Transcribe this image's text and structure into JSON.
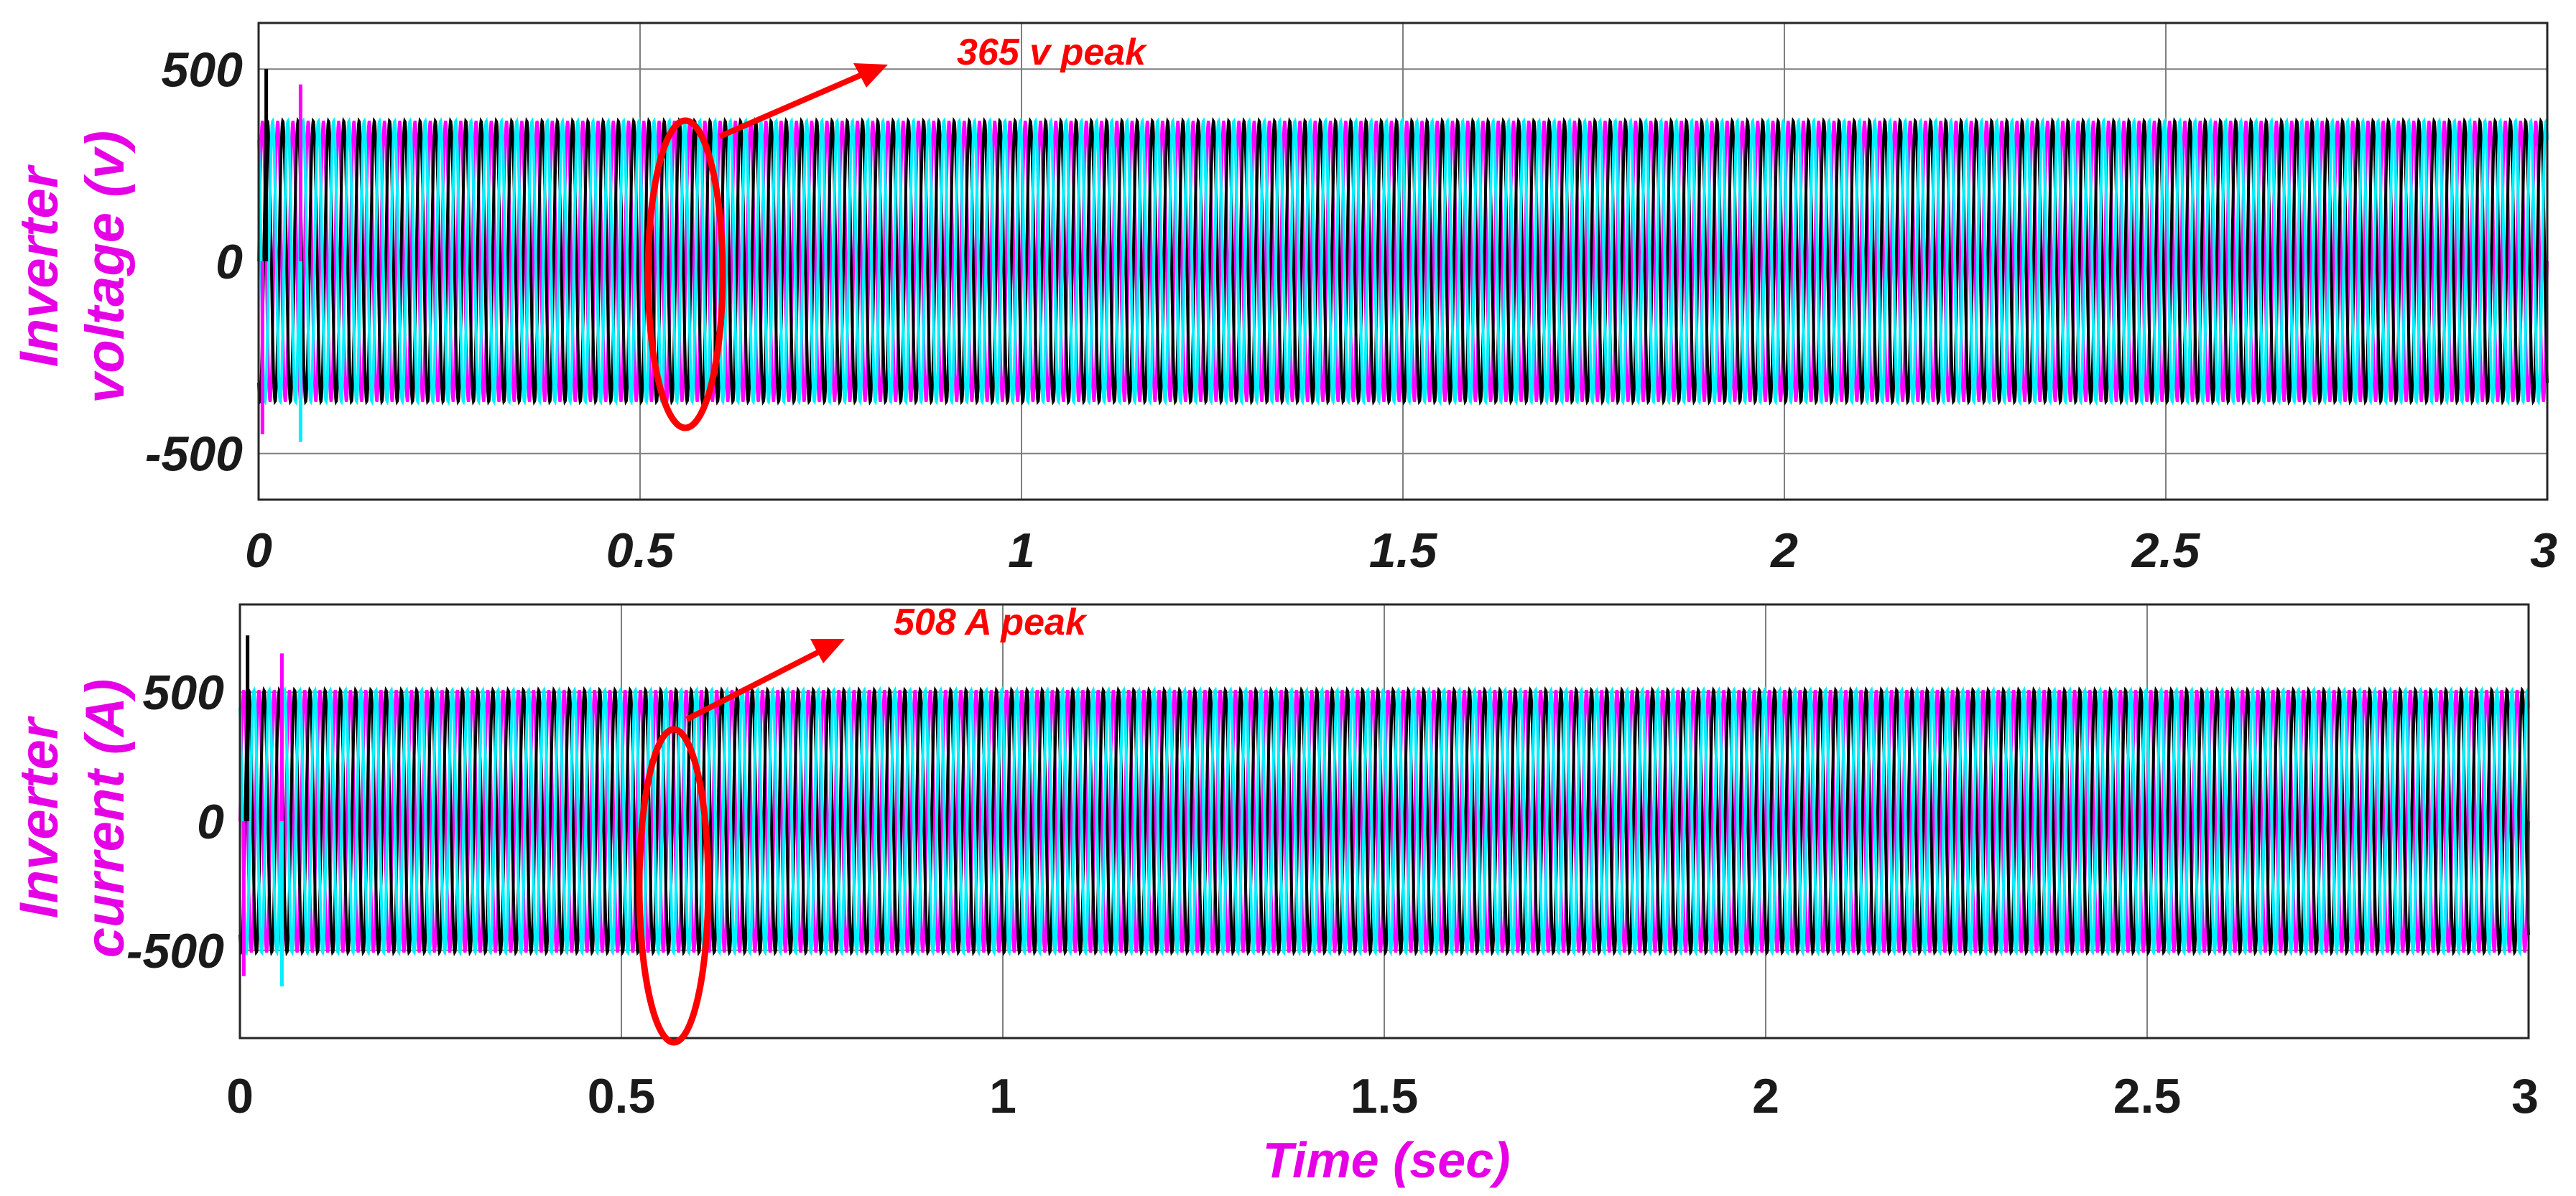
{
  "colors": {
    "phase_a": "#ff00ff",
    "phase_b": "#000000",
    "phase_c": "#00f0ff",
    "annotation": "#ff0000",
    "label": "#e600e6",
    "grid": "#7f7f7f"
  },
  "chart_data": [
    {
      "type": "line",
      "ylabel_lines": [
        "Inverter",
        "voltage (v)"
      ],
      "xlabel": "",
      "xlim": [
        0,
        3
      ],
      "ylim": [
        -620,
        620
      ],
      "x_ticks": [
        0,
        0.5,
        1,
        1.5,
        2,
        2.5,
        3
      ],
      "x_tick_labels": [
        "0",
        "0.5",
        "1",
        "1.5",
        "2",
        "2.5",
        "3"
      ],
      "y_ticks": [
        -500,
        0,
        500
      ],
      "y_tick_labels": [
        "-500",
        "0",
        "500"
      ],
      "grid": true,
      "frequency_hz": 50,
      "steady_amplitude": 365,
      "series": [
        {
          "phase_deg": 0,
          "color_key": "phase_a"
        },
        {
          "phase_deg": -120,
          "color_key": "phase_b"
        },
        {
          "phase_deg": 120,
          "color_key": "phase_c"
        }
      ],
      "transient_spikes": [
        {
          "x": 0.01,
          "y": 500,
          "color_key": "phase_b"
        },
        {
          "x": 0.005,
          "y": -450,
          "color_key": "phase_a"
        },
        {
          "x": 0.055,
          "y": 460,
          "color_key": "phase_a"
        },
        {
          "x": 0.055,
          "y": -470,
          "color_key": "phase_c"
        }
      ],
      "annotation": {
        "text": "365 v peak",
        "x": 0.56
      }
    },
    {
      "type": "line",
      "ylabel_lines": [
        "Inverter",
        "current (A)"
      ],
      "xlabel": "Time (sec)",
      "xlim": [
        0,
        3
      ],
      "ylim": [
        -840,
        840
      ],
      "x_ticks": [
        0,
        0.5,
        1,
        1.5,
        2,
        2.5,
        3
      ],
      "x_tick_labels": [
        "0",
        "0.5",
        "1",
        "1.5",
        "2",
        "2.5",
        "3"
      ],
      "y_ticks": [
        -500,
        0,
        500
      ],
      "y_tick_labels": [
        "-500",
        "0",
        "500"
      ],
      "grid": true,
      "frequency_hz": 50,
      "steady_amplitude": 508,
      "series": [
        {
          "phase_deg": 0,
          "color_key": "phase_a"
        },
        {
          "phase_deg": -120,
          "color_key": "phase_b"
        },
        {
          "phase_deg": 120,
          "color_key": "phase_c"
        }
      ],
      "transient_spikes": [
        {
          "x": 0.01,
          "y": 720,
          "color_key": "phase_b"
        },
        {
          "x": 0.005,
          "y": -600,
          "color_key": "phase_a"
        },
        {
          "x": 0.055,
          "y": 650,
          "color_key": "phase_a"
        },
        {
          "x": 0.055,
          "y": -640,
          "color_key": "phase_c"
        }
      ],
      "annotation": {
        "text": "508 A peak",
        "x": 0.57
      }
    }
  ]
}
